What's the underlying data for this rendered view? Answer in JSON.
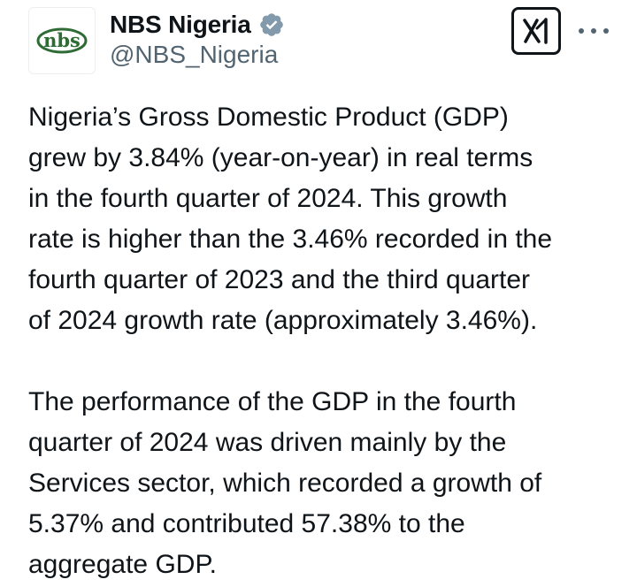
{
  "author": {
    "avatar_text": "nbs",
    "display_name": "NBS Nigeria",
    "verified": true,
    "verified_color": "#829aab",
    "avatar_color": "#2f6b34",
    "handle": "@NBS_Nigeria"
  },
  "header_actions": {
    "grok_icon": "grok-icon",
    "more_icon": "more-options-icon"
  },
  "tweet": {
    "paragraphs": [
      "Nigeria’s Gross Domestic Product (GDP)\ngrew by 3.84% (year-on-year) in real terms\nin the fourth quarter of 2024. This growth\nrate is higher than the 3.46% recorded in the\nfourth quarter of 2023 and the third quarter\nof 2024 growth rate (approximately 3.46%).",
      "The performance of the GDP in the fourth\nquarter of 2024 was driven mainly by the\nServices sector, which recorded a growth of\n5.37% and contributed 57.38% to the\naggregate GDP."
    ]
  }
}
